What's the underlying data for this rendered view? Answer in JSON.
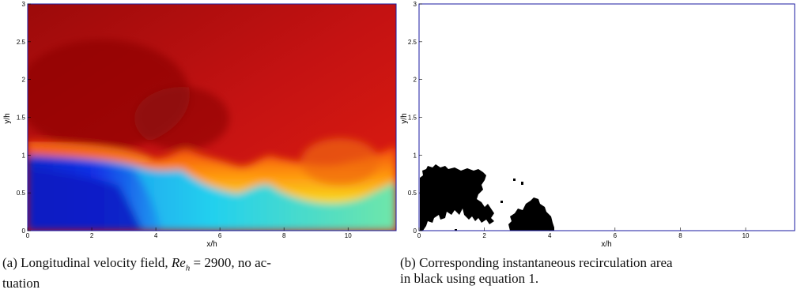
{
  "panels": [
    {
      "id": "a",
      "caption_parts": [
        "(a) Longitudinal velocity field, ",
        "Re",
        "h",
        " = 2900, no ac-",
        "tuation"
      ],
      "xlabel": "x/h",
      "ylabel": "y/h",
      "x_ticks": [
        "0",
        "2",
        "4",
        "6",
        "8",
        "10"
      ],
      "y_ticks": [
        "0",
        "0.5",
        "1",
        "1.5",
        "2",
        "2.5",
        "3"
      ]
    },
    {
      "id": "b",
      "caption_parts": [
        "(b) Corresponding instantaneous recirculation area",
        "in black using equation 1."
      ],
      "xlabel": "x/h",
      "ylabel": "y/h",
      "x_ticks": [
        "0",
        "2",
        "4",
        "6",
        "8",
        "10"
      ],
      "y_ticks": [
        "0",
        "0.5",
        "1",
        "1.5",
        "2",
        "2.5",
        "3"
      ]
    }
  ],
  "chart_data": [
    {
      "type": "heatmap",
      "title": "",
      "xlabel": "x/h",
      "ylabel": "y/h",
      "xlim": [
        0,
        11.5
      ],
      "ylim": [
        0,
        3
      ],
      "colormap": "jet",
      "shear_layer_interface": {
        "x": [
          0,
          1,
          2,
          3,
          3.5,
          4,
          4.5,
          5,
          5.5,
          6,
          6.5,
          7,
          7.5,
          8,
          8.5,
          9,
          9.5,
          10,
          10.5,
          11,
          11.5
        ],
        "y": [
          1.12,
          1.1,
          1.05,
          0.98,
          0.92,
          0.82,
          0.88,
          1.0,
          0.85,
          0.8,
          0.78,
          0.82,
          1.0,
          0.75,
          0.65,
          0.6,
          0.55,
          0.6,
          0.5,
          0.45,
          0.5
        ]
      }
    },
    {
      "type": "heatmap",
      "title": "",
      "xlabel": "x/h",
      "ylabel": "y/h",
      "xlim": [
        0,
        11.5
      ],
      "ylim": [
        0,
        3
      ],
      "colormap": "binary",
      "recirculation_regions": [
        {
          "x": [
            0,
            0.3,
            1.0,
            1.8,
            2.2,
            2.5,
            2.0,
            1.5,
            0.6,
            0
          ],
          "y": [
            0.05,
            0.8,
            0.72,
            0.8,
            0.7,
            0.3,
            0.2,
            0.1,
            0.05,
            0.05
          ]
        },
        {
          "x": [
            2.6,
            2.8,
            3.2,
            3.6,
            4.0,
            4.2,
            4.1,
            3.0,
            2.6
          ],
          "y": [
            0.02,
            0.2,
            0.45,
            0.38,
            0.2,
            0.05,
            0.0,
            0.0,
            0.02
          ]
        }
      ]
    }
  ]
}
